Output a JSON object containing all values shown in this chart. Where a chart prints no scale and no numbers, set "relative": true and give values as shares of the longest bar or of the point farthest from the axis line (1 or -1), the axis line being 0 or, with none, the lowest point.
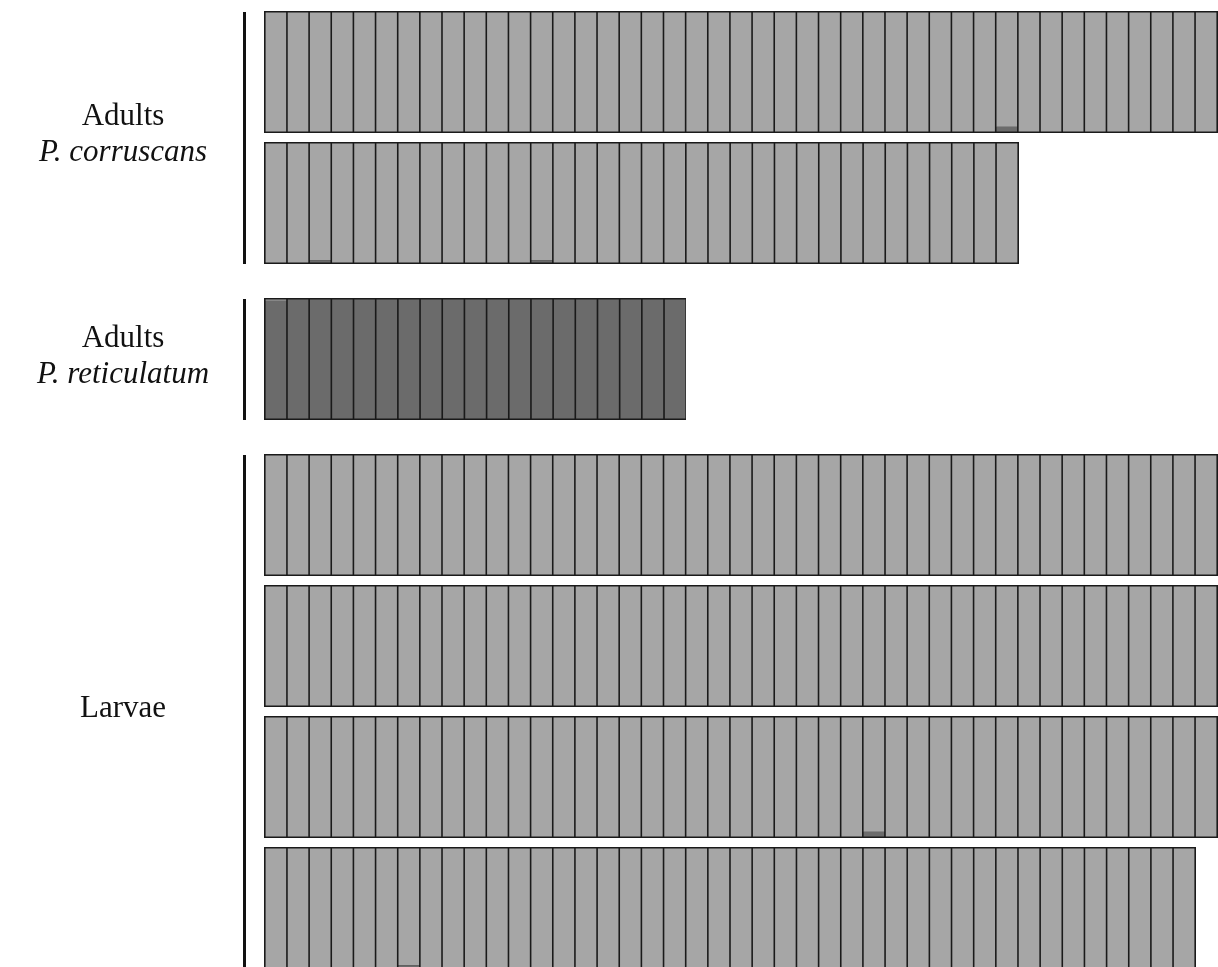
{
  "chart_data": [
    {
      "type": "bar",
      "title": "Adults\nP. corruscans",
      "stacked": true,
      "relative": true,
      "tick_labels": false,
      "categories": [
        null,
        null,
        null,
        null,
        null,
        null,
        null,
        null,
        null,
        null,
        null,
        null,
        null,
        null,
        null,
        null,
        null,
        null,
        null,
        null,
        null,
        null,
        null,
        null,
        null,
        null,
        null,
        null,
        null,
        null,
        null,
        null,
        null,
        null,
        null,
        null,
        null,
        null,
        null,
        null,
        null,
        null,
        null
      ],
      "series": [
        {
          "color": "#6b6b6b",
          "values": [
            0,
            0,
            0,
            0,
            0,
            0,
            0,
            0,
            0,
            0,
            0,
            0,
            0,
            0,
            0,
            0,
            0,
            0,
            0,
            0,
            0,
            0,
            0,
            0,
            0,
            0,
            0,
            0,
            0,
            0,
            0,
            0,
            0,
            0.04,
            0,
            0,
            0,
            0,
            0,
            0,
            0,
            0,
            0
          ]
        },
        {
          "color": "#a6a6a6",
          "values": [
            1,
            1,
            1,
            1,
            1,
            1,
            1,
            1,
            1,
            1,
            1,
            1,
            1,
            1,
            1,
            1,
            1,
            1,
            1,
            1,
            1,
            1,
            1,
            1,
            1,
            1,
            1,
            1,
            1,
            1,
            1,
            1,
            1,
            0.96,
            1,
            1,
            1,
            1,
            1,
            1,
            1,
            1,
            1
          ]
        }
      ]
    },
    {
      "type": "bar",
      "stacked": true,
      "relative": true,
      "tick_labels": false,
      "categories": [
        null,
        null,
        null,
        null,
        null,
        null,
        null,
        null,
        null,
        null,
        null,
        null,
        null,
        null,
        null,
        null,
        null,
        null,
        null,
        null,
        null,
        null,
        null,
        null,
        null,
        null,
        null,
        null,
        null,
        null,
        null,
        null,
        null,
        null
      ],
      "series": [
        {
          "color": "#6b6b6b",
          "values": [
            0,
            0,
            0.02,
            0,
            0,
            0,
            0,
            0,
            0,
            0,
            0,
            0,
            0.02,
            0,
            0,
            0,
            0,
            0,
            0,
            0,
            0,
            0,
            0,
            0,
            0,
            0,
            0,
            0,
            0,
            0,
            0,
            0,
            0,
            0
          ]
        },
        {
          "color": "#a6a6a6",
          "values": [
            1,
            1,
            0.98,
            1,
            1,
            1,
            1,
            1,
            1,
            1,
            1,
            1,
            0.98,
            1,
            1,
            1,
            1,
            1,
            1,
            1,
            1,
            1,
            1,
            1,
            1,
            1,
            1,
            1,
            1,
            1,
            1,
            1,
            1,
            1
          ]
        }
      ]
    },
    {
      "type": "bar",
      "title": "Adults\nP. reticulatum",
      "stacked": true,
      "relative": true,
      "tick_labels": false,
      "categories": [
        null,
        null,
        null,
        null,
        null,
        null,
        null,
        null,
        null,
        null,
        null,
        null,
        null,
        null,
        null,
        null,
        null,
        null,
        null
      ],
      "series": [
        {
          "color": "#6b6b6b",
          "values": [
            0.99,
            1,
            1,
            1,
            1,
            1,
            1,
            1,
            1,
            1,
            1,
            1,
            1,
            1,
            1,
            1,
            1,
            1,
            1
          ]
        },
        {
          "color": "#a6a6a6",
          "values": [
            0.01,
            0,
            0,
            0,
            0,
            0,
            0,
            0,
            0,
            0,
            0,
            0,
            0,
            0,
            0,
            0,
            0,
            0,
            0
          ]
        }
      ]
    },
    {
      "type": "bar",
      "title": "Larvae",
      "stacked": true,
      "relative": true,
      "tick_labels": false,
      "categories": [
        null,
        null,
        null,
        null,
        null,
        null,
        null,
        null,
        null,
        null,
        null,
        null,
        null,
        null,
        null,
        null,
        null,
        null,
        null,
        null,
        null,
        null,
        null,
        null,
        null,
        null,
        null,
        null,
        null,
        null,
        null,
        null,
        null,
        null,
        null,
        null,
        null,
        null,
        null,
        null,
        null,
        null,
        null
      ],
      "series": [
        {
          "color": "#6b6b6b",
          "values": [
            0,
            0,
            0,
            0,
            0,
            0,
            0,
            0,
            0,
            0,
            0,
            0,
            0,
            0,
            0,
            0,
            0,
            0,
            0,
            0,
            0,
            0,
            0,
            0,
            0,
            0,
            0,
            0,
            0,
            0,
            0,
            0,
            0,
            0,
            0,
            0,
            0,
            0,
            0,
            0,
            0,
            0,
            0
          ]
        },
        {
          "color": "#a6a6a6",
          "values": [
            1,
            1,
            1,
            1,
            1,
            1,
            1,
            1,
            1,
            1,
            1,
            1,
            1,
            1,
            1,
            1,
            1,
            1,
            1,
            1,
            1,
            1,
            1,
            1,
            1,
            1,
            1,
            1,
            1,
            1,
            1,
            1,
            1,
            1,
            1,
            1,
            1,
            1,
            1,
            1,
            1,
            1,
            1
          ]
        }
      ]
    },
    {
      "type": "bar",
      "stacked": true,
      "relative": true,
      "tick_labels": false,
      "categories": [
        null,
        null,
        null,
        null,
        null,
        null,
        null,
        null,
        null,
        null,
        null,
        null,
        null,
        null,
        null,
        null,
        null,
        null,
        null,
        null,
        null,
        null,
        null,
        null,
        null,
        null,
        null,
        null,
        null,
        null,
        null,
        null,
        null,
        null,
        null,
        null,
        null,
        null,
        null,
        null,
        null,
        null,
        null
      ],
      "series": [
        {
          "color": "#6b6b6b",
          "values": [
            0,
            0,
            0,
            0,
            0,
            0,
            0,
            0,
            0,
            0,
            0,
            0,
            0,
            0,
            0,
            0,
            0,
            0,
            0,
            0,
            0,
            0,
            0,
            0,
            0,
            0,
            0,
            0,
            0,
            0,
            0,
            0,
            0,
            0,
            0,
            0,
            0,
            0,
            0,
            0,
            0,
            0,
            0
          ]
        },
        {
          "color": "#a6a6a6",
          "values": [
            1,
            1,
            1,
            1,
            1,
            1,
            1,
            1,
            1,
            1,
            1,
            1,
            1,
            1,
            1,
            1,
            1,
            1,
            1,
            1,
            1,
            1,
            1,
            1,
            1,
            1,
            1,
            1,
            1,
            1,
            1,
            1,
            1,
            1,
            1,
            1,
            1,
            1,
            1,
            1,
            1,
            1,
            1
          ]
        }
      ]
    },
    {
      "type": "bar",
      "stacked": true,
      "relative": true,
      "tick_labels": false,
      "categories": [
        null,
        null,
        null,
        null,
        null,
        null,
        null,
        null,
        null,
        null,
        null,
        null,
        null,
        null,
        null,
        null,
        null,
        null,
        null,
        null,
        null,
        null,
        null,
        null,
        null,
        null,
        null,
        null,
        null,
        null,
        null,
        null,
        null,
        null,
        null,
        null,
        null,
        null,
        null,
        null,
        null,
        null,
        null
      ],
      "series": [
        {
          "color": "#6b6b6b",
          "values": [
            0,
            0,
            0,
            0,
            0,
            0,
            0,
            0,
            0,
            0,
            0,
            0,
            0,
            0,
            0,
            0,
            0,
            0,
            0,
            0,
            0,
            0,
            0,
            0,
            0,
            0,
            0,
            0.04,
            0,
            0,
            0,
            0,
            0,
            0,
            0,
            0,
            0,
            0,
            0,
            0,
            0,
            0,
            0
          ]
        },
        {
          "color": "#a6a6a6",
          "values": [
            1,
            1,
            1,
            1,
            1,
            1,
            1,
            1,
            1,
            1,
            1,
            1,
            1,
            1,
            1,
            1,
            1,
            1,
            1,
            1,
            1,
            1,
            1,
            1,
            1,
            1,
            1,
            0.96,
            1,
            1,
            1,
            1,
            1,
            1,
            1,
            1,
            1,
            1,
            1,
            1,
            1,
            1,
            1
          ]
        }
      ]
    },
    {
      "type": "bar",
      "stacked": true,
      "relative": true,
      "tick_labels": false,
      "categories": [
        null,
        null,
        null,
        null,
        null,
        null,
        null,
        null,
        null,
        null,
        null,
        null,
        null,
        null,
        null,
        null,
        null,
        null,
        null,
        null,
        null,
        null,
        null,
        null,
        null,
        null,
        null,
        null,
        null,
        null,
        null,
        null,
        null,
        null,
        null,
        null,
        null,
        null,
        null,
        null,
        null,
        null
      ],
      "series": [
        {
          "color": "#6b6b6b",
          "values": [
            0,
            0,
            0,
            0,
            0,
            0,
            0.02,
            0,
            0,
            0,
            0,
            0,
            0,
            0,
            0,
            0,
            0,
            0,
            0,
            0,
            0,
            0,
            0,
            0,
            0,
            0,
            0,
            0,
            0,
            0,
            0,
            0,
            0,
            0,
            0,
            0,
            0,
            0,
            0,
            0,
            0,
            0
          ]
        },
        {
          "color": "#a6a6a6",
          "values": [
            1,
            1,
            1,
            1,
            1,
            1,
            0.98,
            1,
            1,
            1,
            1,
            1,
            1,
            1,
            1,
            1,
            1,
            1,
            1,
            1,
            1,
            1,
            1,
            1,
            1,
            1,
            1,
            1,
            1,
            1,
            1,
            1,
            1,
            1,
            1,
            1,
            1,
            1,
            1,
            1,
            1,
            1
          ]
        }
      ]
    }
  ]
}
